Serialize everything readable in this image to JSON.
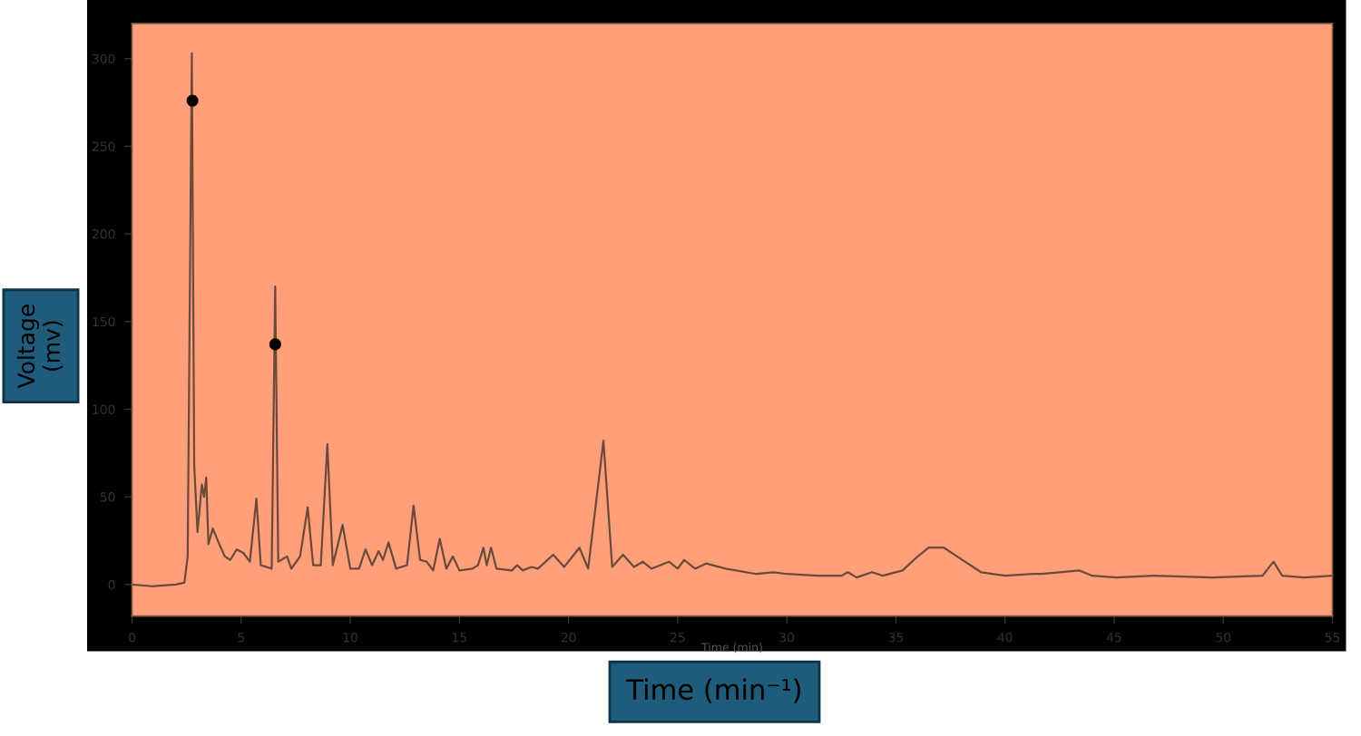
{
  "chart_data": {
    "type": "line",
    "xlabel": "Time (min⁻¹)",
    "ylabel": "Voltage (mv)",
    "annotations": [
      "Time (min)"
    ],
    "xlim": [
      0,
      55
    ],
    "xticks": [
      0,
      5,
      10,
      15,
      20,
      25,
      30,
      35,
      40,
      45,
      50,
      55
    ],
    "ylim": [
      -18,
      320
    ],
    "yticks": [
      0,
      50,
      100,
      150,
      200,
      250,
      300
    ],
    "grid": false,
    "legend": false,
    "series": [
      {
        "color": "#6b4a3c",
        "marker": "none",
        "x": [
          0,
          0.9,
          2.0,
          2.4,
          2.55,
          2.74,
          2.85,
          3.0,
          3.2,
          3.3,
          3.4,
          3.5,
          3.7,
          4.0,
          4.25,
          4.5,
          4.8,
          5.1,
          5.4,
          5.7,
          5.9,
          6.4,
          6.56,
          6.7,
          7.1,
          7.3,
          7.7,
          8.05,
          8.3,
          8.65,
          8.95,
          9.2,
          9.65,
          10.0,
          10.4,
          10.7,
          11.0,
          11.3,
          11.5,
          11.75,
          12.1,
          12.6,
          12.9,
          13.2,
          13.5,
          13.8,
          14.1,
          14.4,
          14.7,
          15.0,
          15.6,
          15.85,
          16.1,
          16.25,
          16.45,
          16.7,
          17.4,
          17.65,
          17.9,
          18.3,
          18.6,
          19.3,
          19.8,
          20.5,
          20.9,
          21.6,
          22.0,
          22.5,
          23.0,
          23.4,
          23.8,
          24.6,
          25.0,
          25.3,
          25.8,
          26.3,
          27.2,
          28.6,
          29.4,
          30.0,
          31.4,
          32.5,
          32.8,
          33.2,
          33.9,
          34.4,
          35.3,
          36.0,
          36.5,
          37.2,
          37.8,
          38.9,
          40.0,
          41.3,
          41.7,
          43.4,
          44.0,
          45.1,
          46.8,
          49.5,
          51.8,
          52.3,
          52.7,
          53.7,
          55.0
        ],
        "values": [
          0,
          -1,
          0,
          1,
          16,
          303,
          68,
          30,
          57,
          50,
          61,
          23,
          32,
          23,
          16,
          14,
          20,
          18,
          13,
          49,
          11,
          9,
          170,
          13,
          16,
          9,
          16,
          44,
          11,
          11,
          80,
          11,
          34,
          9,
          9,
          20,
          11,
          19,
          14,
          24,
          9,
          11,
          45,
          14,
          13,
          8,
          26,
          9,
          16,
          8,
          9,
          11,
          21,
          11,
          21,
          9,
          8,
          11,
          8,
          10,
          9,
          17,
          10,
          21,
          9,
          82,
          10,
          17,
          10,
          13,
          9,
          13,
          9,
          14,
          9,
          12,
          9,
          6,
          7,
          6,
          5,
          5,
          7,
          4,
          7,
          5,
          8,
          16,
          21,
          21,
          16,
          7,
          5,
          6,
          6,
          8,
          5,
          4,
          5,
          4,
          5,
          13,
          5,
          4,
          5
        ]
      },
      {
        "type": "scatter",
        "color": "#000000",
        "marker": "circle",
        "x": [
          2.77,
          6.56
        ],
        "values": [
          276,
          137
        ]
      }
    ]
  }
}
